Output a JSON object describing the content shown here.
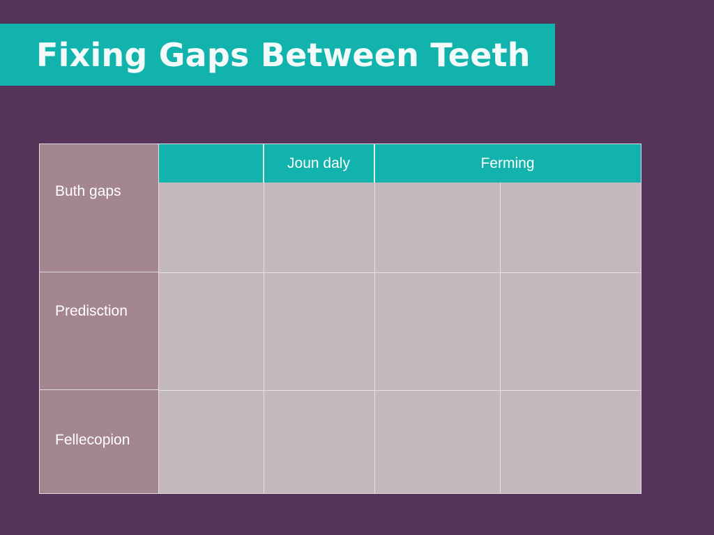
{
  "title": "Fixing Gaps Between Teeth",
  "table": {
    "column_headers": [
      "",
      "Joun daly",
      "Ferming"
    ],
    "row_headers": [
      "Buth gaps",
      "Predisction",
      "Fellecopion"
    ]
  },
  "colors": {
    "background": "#56345a",
    "accent": "#12b3ac",
    "row_header_fill": "#a48690",
    "cell_fill": "#c4b8bf"
  }
}
